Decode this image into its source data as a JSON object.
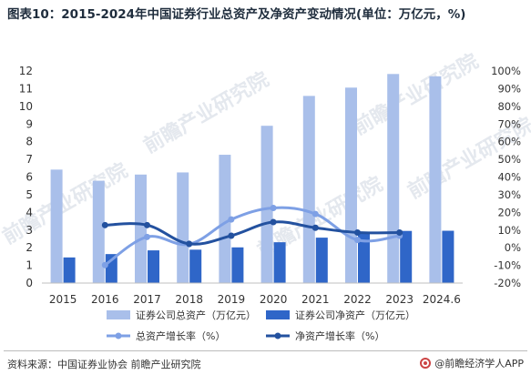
{
  "title": "图表10：2015-2024年中国证券行业总资产及净资产变动情况(单位：万亿元，%)",
  "source": "资料来源：中国证券业协会 前瞻产业研究院",
  "brand": "@前瞻经济学人APP",
  "watermark": "前瞻产业研究院",
  "colors": {
    "total_assets_bar": "#a9bfea",
    "net_assets_bar": "#2f66c8",
    "total_growth_line": "#7ea0e5",
    "net_growth_line": "#23519f",
    "axis_text": "#333333"
  },
  "chart_data": {
    "type": "bar",
    "title": "图表10：2015-2024年中国证券行业总资产及净资产变动情况(单位：万亿元，%)",
    "categories": [
      "2015",
      "2016",
      "2017",
      "2018",
      "2019",
      "2020",
      "2021",
      "2022",
      "2023",
      "2024.6"
    ],
    "left_axis": {
      "ylim": [
        0,
        12
      ],
      "ticks": [
        "0",
        "1",
        "2",
        "3",
        "4",
        "5",
        "6",
        "7",
        "8",
        "9",
        "10",
        "11",
        "12"
      ]
    },
    "right_axis": {
      "ylim": [
        -20,
        100
      ],
      "ticks": [
        "-20%",
        "-10%",
        "0%",
        "10%",
        "20%",
        "30%",
        "40%",
        "50%",
        "60%",
        "70%",
        "80%",
        "90%",
        "100%"
      ]
    },
    "bars": [
      {
        "name": "证券公司总资产（万亿元）",
        "axis": "left",
        "values": [
          6.42,
          5.79,
          6.14,
          6.26,
          7.26,
          8.9,
          10.59,
          11.06,
          11.83,
          11.7
        ]
      },
      {
        "name": "证券公司净资产（万亿元）",
        "axis": "left",
        "values": [
          1.45,
          1.64,
          1.85,
          1.89,
          2.02,
          2.31,
          2.57,
          2.79,
          2.95,
          2.96
        ]
      }
    ],
    "lines": [
      {
        "name": "总资产增长率（%）",
        "axis": "right",
        "values": [
          null,
          -9.8,
          6.1,
          2.0,
          16.0,
          22.5,
          19.1,
          4.4,
          6.8,
          null
        ]
      },
      {
        "name": "净资产增长率（%）",
        "axis": "right",
        "values": [
          null,
          12.8,
          12.8,
          2.2,
          6.8,
          14.5,
          11.3,
          8.6,
          8.6,
          null
        ]
      }
    ],
    "legend": "bottom"
  }
}
